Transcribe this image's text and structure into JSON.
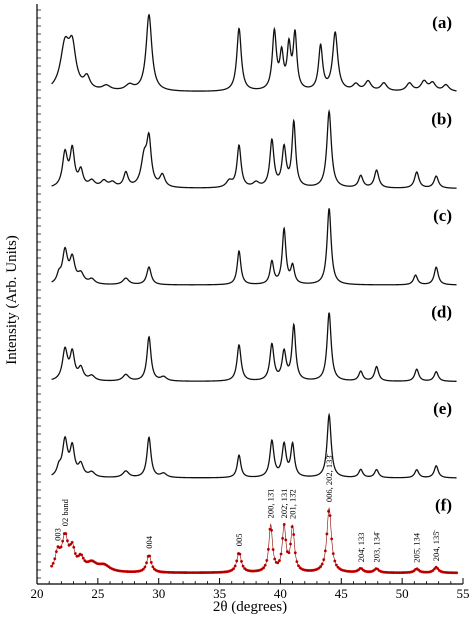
{
  "chart_data": {
    "type": "line",
    "xlabel": "2θ (degrees)",
    "ylabel": "Intensity (Arb. Units)",
    "xlim": [
      20,
      55
    ],
    "xticks": [
      20,
      25,
      30,
      35,
      40,
      45,
      50,
      55
    ],
    "colors": {
      "pattern": "#111111",
      "observed": "#cc0000"
    },
    "panels": [
      {
        "label": "(a)",
        "baseline": 0.03,
        "peaks": [
          [
            22.3,
            0.55,
            0.45
          ],
          [
            22.9,
            0.48,
            0.35
          ],
          [
            24.1,
            0.15,
            0.3
          ],
          [
            25.7,
            0.06,
            0.4
          ],
          [
            27.6,
            0.07,
            0.4
          ],
          [
            29.2,
            0.95,
            0.28
          ],
          [
            36.6,
            0.78,
            0.22
          ],
          [
            39.5,
            0.72,
            0.2
          ],
          [
            40.1,
            0.42,
            0.18
          ],
          [
            40.7,
            0.52,
            0.18
          ],
          [
            41.2,
            0.68,
            0.18
          ],
          [
            43.3,
            0.55,
            0.2
          ],
          [
            44.5,
            0.72,
            0.25
          ],
          [
            46.2,
            0.08,
            0.3
          ],
          [
            47.2,
            0.12,
            0.3
          ],
          [
            48.5,
            0.1,
            0.3
          ],
          [
            50.6,
            0.1,
            0.3
          ],
          [
            51.8,
            0.12,
            0.3
          ],
          [
            52.5,
            0.1,
            0.3
          ],
          [
            53.6,
            0.08,
            0.3
          ]
        ]
      },
      {
        "label": "(b)",
        "baseline": 0.03,
        "peaks": [
          [
            22.3,
            0.42,
            0.25
          ],
          [
            22.9,
            0.45,
            0.22
          ],
          [
            23.6,
            0.2,
            0.22
          ],
          [
            24.5,
            0.08,
            0.3
          ],
          [
            25.5,
            0.08,
            0.3
          ],
          [
            26.2,
            0.06,
            0.3
          ],
          [
            27.3,
            0.18,
            0.22
          ],
          [
            28.8,
            0.35,
            0.3
          ],
          [
            29.2,
            0.55,
            0.22
          ],
          [
            30.3,
            0.15,
            0.25
          ],
          [
            35.8,
            0.08,
            0.3
          ],
          [
            36.6,
            0.52,
            0.2
          ],
          [
            38.0,
            0.06,
            0.3
          ],
          [
            39.3,
            0.58,
            0.2
          ],
          [
            40.3,
            0.48,
            0.2
          ],
          [
            41.1,
            0.8,
            0.18
          ],
          [
            44.0,
            0.95,
            0.22
          ],
          [
            46.6,
            0.15,
            0.22
          ],
          [
            47.9,
            0.22,
            0.22
          ],
          [
            51.2,
            0.2,
            0.22
          ],
          [
            52.8,
            0.15,
            0.22
          ]
        ]
      },
      {
        "label": "(c)",
        "baseline": 0.03,
        "peaks": [
          [
            21.8,
            0.1,
            0.2
          ],
          [
            22.3,
            0.4,
            0.25
          ],
          [
            22.9,
            0.3,
            0.25
          ],
          [
            23.6,
            0.12,
            0.3
          ],
          [
            24.5,
            0.06,
            0.3
          ],
          [
            27.3,
            0.08,
            0.3
          ],
          [
            29.2,
            0.22,
            0.22
          ],
          [
            36.6,
            0.42,
            0.18
          ],
          [
            39.3,
            0.28,
            0.18
          ],
          [
            40.3,
            0.68,
            0.18
          ],
          [
            41.0,
            0.22,
            0.18
          ],
          [
            44.0,
            0.95,
            0.2
          ],
          [
            51.1,
            0.12,
            0.2
          ],
          [
            52.8,
            0.22,
            0.2
          ]
        ]
      },
      {
        "label": "(d)",
        "baseline": 0.03,
        "peaks": [
          [
            22.3,
            0.38,
            0.25
          ],
          [
            22.9,
            0.33,
            0.22
          ],
          [
            23.6,
            0.15,
            0.25
          ],
          [
            24.5,
            0.06,
            0.3
          ],
          [
            27.3,
            0.08,
            0.3
          ],
          [
            29.2,
            0.55,
            0.2
          ],
          [
            30.4,
            0.05,
            0.3
          ],
          [
            36.6,
            0.45,
            0.2
          ],
          [
            39.3,
            0.45,
            0.2
          ],
          [
            40.3,
            0.35,
            0.2
          ],
          [
            41.1,
            0.68,
            0.18
          ],
          [
            44.0,
            0.85,
            0.2
          ],
          [
            46.6,
            0.12,
            0.2
          ],
          [
            47.9,
            0.18,
            0.2
          ],
          [
            51.2,
            0.15,
            0.2
          ],
          [
            52.8,
            0.12,
            0.2
          ]
        ]
      },
      {
        "label": "(e)",
        "baseline": 0.03,
        "peaks": [
          [
            21.8,
            0.1,
            0.2
          ],
          [
            22.3,
            0.45,
            0.25
          ],
          [
            22.9,
            0.35,
            0.22
          ],
          [
            23.6,
            0.15,
            0.25
          ],
          [
            24.5,
            0.06,
            0.3
          ],
          [
            27.3,
            0.08,
            0.3
          ],
          [
            29.2,
            0.5,
            0.2
          ],
          [
            30.4,
            0.05,
            0.3
          ],
          [
            36.6,
            0.28,
            0.18
          ],
          [
            39.3,
            0.45,
            0.2
          ],
          [
            40.3,
            0.4,
            0.2
          ],
          [
            41.0,
            0.4,
            0.18
          ],
          [
            44.0,
            0.78,
            0.2
          ],
          [
            46.6,
            0.1,
            0.2
          ],
          [
            47.9,
            0.1,
            0.2
          ],
          [
            51.2,
            0.1,
            0.2
          ],
          [
            52.8,
            0.15,
            0.2
          ]
        ]
      },
      {
        "label": "(f)",
        "baseline": 0.05,
        "observed": true,
        "peaks": [
          [
            21.7,
            0.22,
            0.25
          ],
          [
            22.3,
            0.42,
            0.3
          ],
          [
            22.9,
            0.25,
            0.25
          ],
          [
            23.6,
            0.15,
            0.3
          ],
          [
            24.5,
            0.1,
            0.5
          ],
          [
            25.5,
            0.08,
            0.6
          ],
          [
            29.2,
            0.22,
            0.22
          ],
          [
            36.6,
            0.25,
            0.22
          ],
          [
            39.2,
            0.58,
            0.18
          ],
          [
            40.3,
            0.55,
            0.18
          ],
          [
            41.0,
            0.55,
            0.18
          ],
          [
            44.0,
            0.8,
            0.22
          ],
          [
            46.6,
            0.05,
            0.22
          ],
          [
            47.9,
            0.05,
            0.22
          ],
          [
            51.2,
            0.05,
            0.22
          ],
          [
            52.8,
            0.07,
            0.22
          ]
        ],
        "annotations": [
          {
            "text": "003",
            "x": 21.7
          },
          {
            "text": "02 band",
            "x": 22.3
          },
          {
            "text": "004",
            "x": 29.2
          },
          {
            "text": "005",
            "x": 36.6
          },
          {
            "text": "200, 13̄1",
            "x": 39.2
          },
          {
            "text": "202̄, 131",
            "x": 40.3
          },
          {
            "text": "201, 13̄2",
            "x": 41.0
          },
          {
            "text": "006, 202, 133̄",
            "x": 44.0
          },
          {
            "text": "204̄, 133",
            "x": 46.6
          },
          {
            "text": "203, 134̄",
            "x": 47.9
          },
          {
            "text": "205̄, 134",
            "x": 51.2
          },
          {
            "text": "204, 135̄",
            "x": 52.8
          }
        ]
      }
    ]
  }
}
